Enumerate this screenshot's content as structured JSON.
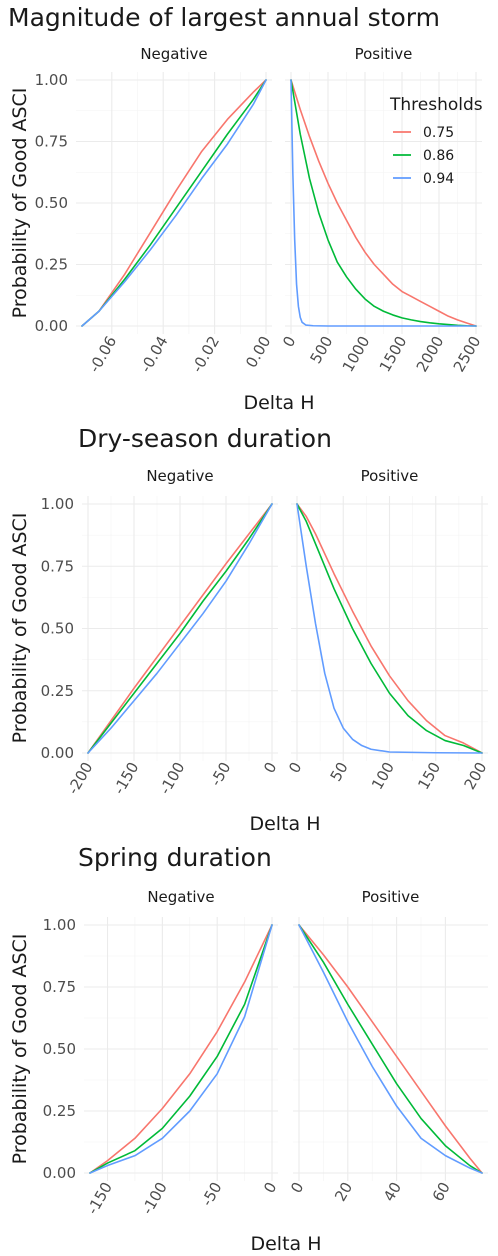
{
  "colors": {
    "t075": "#F8766D",
    "t086": "#00BA38",
    "t094": "#619CFF"
  },
  "legend": {
    "title": "Thresholds",
    "items": [
      {
        "label": "0.75",
        "color": "#F8766D"
      },
      {
        "label": "0.86",
        "color": "#00BA38"
      },
      {
        "label": "0.94",
        "color": "#619CFF"
      }
    ]
  },
  "chart_data": [
    {
      "type": "line",
      "title": "Magnitude of largest annual storm",
      "xlabel": "Delta H",
      "ylabel": "Probability of Good ASCI",
      "ylim": [
        0,
        1
      ],
      "yticks": [
        "0.00",
        "0.25",
        "0.50",
        "0.75",
        "1.00"
      ],
      "grid": true,
      "legend_position": "top-right",
      "panels": [
        {
          "strip": "Negative",
          "xlim": [
            -0.0716,
            0
          ],
          "xticks": [
            -0.06,
            -0.04,
            -0.02,
            0
          ],
          "xtick_labels": [
            "-0.06",
            "-0.04",
            "-0.02",
            "0.00"
          ],
          "series": [
            {
              "name": "0.75",
              "x": [
                -0.0716,
                -0.065,
                -0.055,
                -0.045,
                -0.035,
                -0.025,
                -0.015,
                -0.005,
                0
              ],
              "y": [
                0,
                0.06,
                0.21,
                0.38,
                0.55,
                0.71,
                0.84,
                0.95,
                1
              ]
            },
            {
              "name": "0.86",
              "x": [
                -0.0716,
                -0.065,
                -0.055,
                -0.045,
                -0.035,
                -0.025,
                -0.015,
                -0.005,
                0
              ],
              "y": [
                0,
                0.06,
                0.19,
                0.33,
                0.48,
                0.63,
                0.78,
                0.92,
                1
              ]
            },
            {
              "name": "0.94",
              "x": [
                -0.0716,
                -0.065,
                -0.055,
                -0.045,
                -0.035,
                -0.025,
                -0.015,
                -0.005,
                0
              ],
              "y": [
                0,
                0.06,
                0.18,
                0.31,
                0.45,
                0.6,
                0.74,
                0.9,
                1
              ]
            }
          ]
        },
        {
          "strip": "Positive",
          "xlim": [
            0,
            2500
          ],
          "xticks": [
            0,
            500,
            1000,
            1500,
            2000,
            2500
          ],
          "xtick_labels": [
            "0",
            "500",
            "1000",
            "1500",
            "2000",
            "2500"
          ],
          "series": [
            {
              "name": "0.75",
              "x": [
                0,
                125,
                250,
                375,
                500,
                625,
                750,
                875,
                1000,
                1125,
                1250,
                1375,
                1500,
                1625,
                1750,
                1875,
                2000,
                2125,
                2250,
                2375,
                2500
              ],
              "y": [
                1,
                0.88,
                0.77,
                0.67,
                0.58,
                0.5,
                0.43,
                0.36,
                0.3,
                0.25,
                0.21,
                0.17,
                0.14,
                0.12,
                0.1,
                0.08,
                0.06,
                0.04,
                0.025,
                0.012,
                0
              ]
            },
            {
              "name": "0.86",
              "x": [
                0,
                125,
                250,
                375,
                500,
                625,
                750,
                875,
                1000,
                1125,
                1250,
                1375,
                1500,
                1625,
                1750,
                1875,
                2000,
                2125,
                2250,
                2375,
                2500
              ],
              "y": [
                1,
                0.78,
                0.6,
                0.46,
                0.35,
                0.26,
                0.2,
                0.15,
                0.11,
                0.08,
                0.06,
                0.045,
                0.033,
                0.025,
                0.018,
                0.013,
                0.009,
                0.006,
                0.003,
                0.001,
                0
              ]
            },
            {
              "name": "0.94",
              "x": [
                0,
                25,
                50,
                75,
                100,
                125,
                150,
                200,
                300,
                500,
                1000,
                1500,
                2000,
                2500
              ],
              "y": [
                1,
                0.62,
                0.35,
                0.17,
                0.08,
                0.035,
                0.015,
                0.004,
                0.001,
                0,
                0,
                0,
                0,
                0
              ]
            }
          ]
        }
      ]
    },
    {
      "type": "line",
      "title": "Dry-season duration",
      "xlabel": "Delta H",
      "ylabel": "Probability of Good ASCI",
      "ylim": [
        0,
        1
      ],
      "yticks": [
        "0.00",
        "0.25",
        "0.50",
        "0.75",
        "1.00"
      ],
      "grid": true,
      "panels": [
        {
          "strip": "Negative",
          "xlim": [
            -200,
            0
          ],
          "xticks": [
            -200,
            -150,
            -100,
            -50,
            0
          ],
          "xtick_labels": [
            "-200",
            "-150",
            "-100",
            "-50",
            "0"
          ],
          "series": [
            {
              "name": "0.75",
              "x": [
                -200,
                -150,
                -100,
                -50,
                0
              ],
              "y": [
                0,
                0.26,
                0.51,
                0.76,
                1
              ]
            },
            {
              "name": "0.86",
              "x": [
                -200,
                -175,
                -150,
                -125,
                -100,
                -75,
                -50,
                -25,
                0
              ],
              "y": [
                0,
                0.12,
                0.24,
                0.36,
                0.48,
                0.61,
                0.73,
                0.86,
                1
              ]
            },
            {
              "name": "0.94",
              "x": [
                -200,
                -175,
                -150,
                -125,
                -100,
                -75,
                -50,
                -25,
                0
              ],
              "y": [
                0,
                0.1,
                0.21,
                0.32,
                0.44,
                0.56,
                0.69,
                0.84,
                1
              ]
            }
          ]
        },
        {
          "strip": "Positive",
          "xlim": [
            0,
            200
          ],
          "xticks": [
            0,
            50,
            100,
            150,
            200
          ],
          "xtick_labels": [
            "0",
            "50",
            "100",
            "150",
            "200"
          ],
          "series": [
            {
              "name": "0.75",
              "x": [
                0,
                10,
                20,
                40,
                60,
                80,
                100,
                120,
                140,
                160,
                180,
                200
              ],
              "y": [
                1,
                0.95,
                0.88,
                0.72,
                0.57,
                0.43,
                0.31,
                0.21,
                0.13,
                0.07,
                0.04,
                0
              ]
            },
            {
              "name": "0.86",
              "x": [
                0,
                10,
                20,
                40,
                60,
                80,
                100,
                120,
                140,
                160,
                180,
                200
              ],
              "y": [
                1,
                0.93,
                0.84,
                0.66,
                0.5,
                0.36,
                0.24,
                0.15,
                0.09,
                0.05,
                0.03,
                0
              ]
            },
            {
              "name": "0.94",
              "x": [
                0,
                10,
                20,
                30,
                40,
                50,
                60,
                70,
                80,
                100,
                150,
                200
              ],
              "y": [
                1,
                0.75,
                0.52,
                0.32,
                0.18,
                0.1,
                0.055,
                0.03,
                0.015,
                0.004,
                0.001,
                0
              ]
            }
          ]
        }
      ]
    },
    {
      "type": "line",
      "title": "Spring duration",
      "xlabel": "Delta H",
      "ylabel": "Probability of Good ASCI",
      "ylim": [
        0,
        1
      ],
      "yticks": [
        "0.00",
        "0.25",
        "0.50",
        "0.75",
        "1.00"
      ],
      "grid": true,
      "panels": [
        {
          "strip": "Negative",
          "xlim": [
            -166,
            0
          ],
          "xticks": [
            -150,
            -100,
            -50,
            0
          ],
          "xtick_labels": [
            "-150",
            "-100",
            "-50",
            "0"
          ],
          "series": [
            {
              "name": "0.75",
              "x": [
                -166,
                -150,
                -125,
                -100,
                -75,
                -50,
                -25,
                0
              ],
              "y": [
                0,
                0.05,
                0.14,
                0.26,
                0.4,
                0.57,
                0.77,
                1
              ]
            },
            {
              "name": "0.86",
              "x": [
                -166,
                -150,
                -125,
                -100,
                -75,
                -50,
                -25,
                0
              ],
              "y": [
                0,
                0.04,
                0.09,
                0.18,
                0.31,
                0.47,
                0.68,
                1
              ]
            },
            {
              "name": "0.94",
              "x": [
                -166,
                -150,
                -125,
                -100,
                -75,
                -50,
                -25,
                0
              ],
              "y": [
                0,
                0.03,
                0.07,
                0.14,
                0.25,
                0.4,
                0.63,
                1
              ]
            }
          ]
        },
        {
          "strip": "Positive",
          "xlim": [
            0,
            75
          ],
          "xticks": [
            0,
            20,
            40,
            60
          ],
          "xtick_labels": [
            "0",
            "20",
            "40",
            "60"
          ],
          "series": [
            {
              "name": "0.75",
              "x": [
                0,
                10,
                20,
                30,
                40,
                50,
                60,
                70,
                75
              ],
              "y": [
                1,
                0.88,
                0.75,
                0.61,
                0.47,
                0.33,
                0.19,
                0.06,
                0
              ]
            },
            {
              "name": "0.86",
              "x": [
                0,
                10,
                20,
                30,
                40,
                50,
                60,
                70,
                75
              ],
              "y": [
                1,
                0.85,
                0.68,
                0.52,
                0.36,
                0.22,
                0.11,
                0.03,
                0
              ]
            },
            {
              "name": "0.94",
              "x": [
                0,
                10,
                20,
                30,
                40,
                50,
                60,
                70,
                75
              ],
              "y": [
                1,
                0.81,
                0.61,
                0.43,
                0.27,
                0.14,
                0.07,
                0.02,
                0
              ]
            }
          ]
        }
      ]
    }
  ]
}
